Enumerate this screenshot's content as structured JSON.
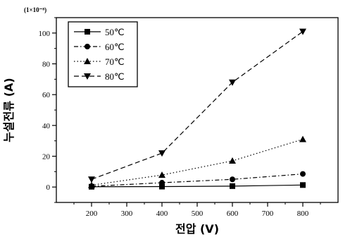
{
  "chart_data": {
    "type": "line",
    "title": "",
    "xlabel": "전압 (V)",
    "ylabel": "누설전류 (A)",
    "y_multiplier": "(1×10⁻⁸)",
    "xlim": [
      100,
      900
    ],
    "ylim": [
      -10,
      110
    ],
    "xticks": [
      200,
      300,
      400,
      500,
      600,
      700,
      800
    ],
    "yticks": [
      0,
      20,
      40,
      60,
      80,
      100
    ],
    "grid": false,
    "legend_position": "top-left",
    "x": [
      200,
      400,
      600,
      800
    ],
    "series": [
      {
        "name": "50℃",
        "marker": "square",
        "dash": "solid",
        "values": [
          0.2,
          0.3,
          0.6,
          1.3
        ]
      },
      {
        "name": "60℃",
        "marker": "circle",
        "dash": "dashdot",
        "values": [
          0.5,
          2.8,
          5.0,
          8.5
        ]
      },
      {
        "name": "70℃",
        "marker": "triangle-up",
        "dash": "dotted",
        "values": [
          1.2,
          7.8,
          17.0,
          31.0
        ]
      },
      {
        "name": "80℃",
        "marker": "triangle-down",
        "dash": "dashed",
        "values": [
          5.0,
          22.0,
          68.0,
          101.0
        ]
      }
    ]
  }
}
